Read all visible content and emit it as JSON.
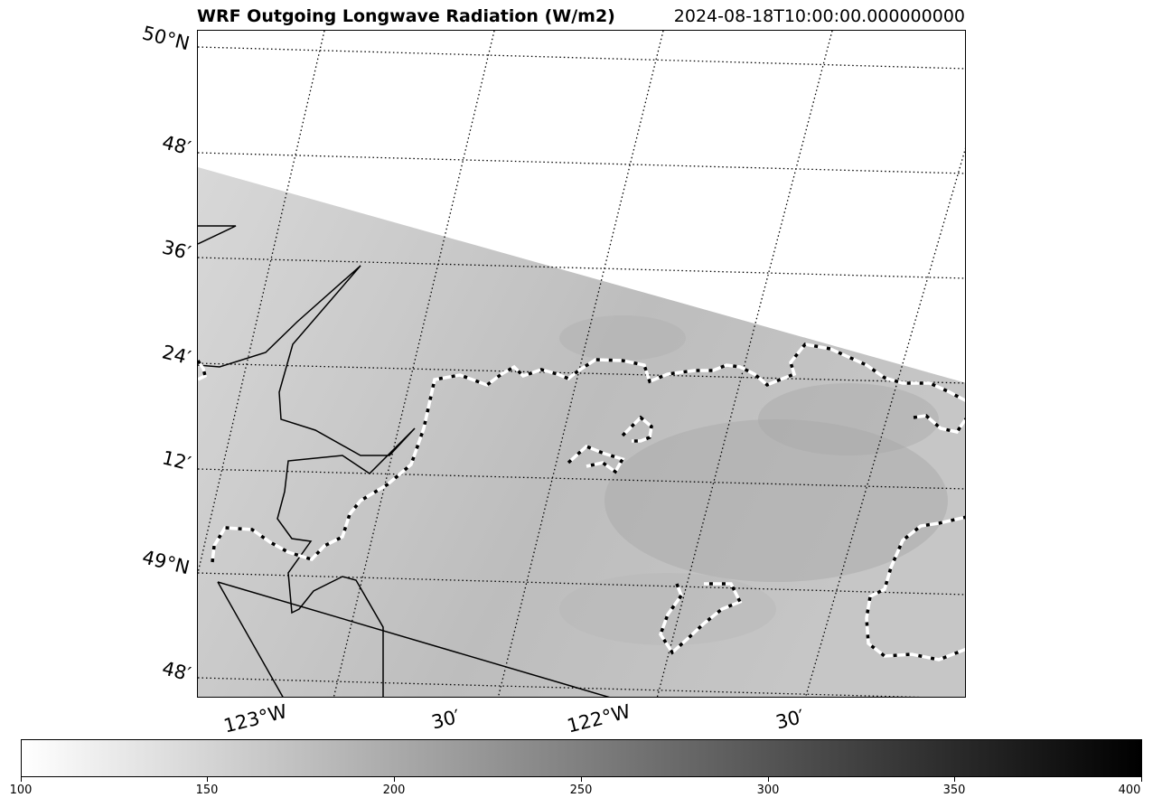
{
  "header": {
    "title": "WRF Outgoing Longwave Radiation (W/m2)",
    "timestamp": "2024-08-18T10:00:00.000000000"
  },
  "map": {
    "variable": "Outgoing Longwave Radiation",
    "units": "W/m2",
    "lat_labels": [
      "50°N",
      "48′",
      "36′",
      "24′",
      "12′",
      "49°N",
      "48′"
    ],
    "lon_labels": [
      "123°W",
      "30′",
      "122°W",
      "30′"
    ],
    "gridline_style": "dotted",
    "coastline_style": "white-black dashed",
    "border_style": "solid black",
    "data_color": "#cccccc"
  },
  "colorbar": {
    "colormap": "Greys",
    "min": 100,
    "max": 400,
    "ticks": [
      "100",
      "150",
      "200",
      "250",
      "300",
      "350",
      "400"
    ]
  }
}
